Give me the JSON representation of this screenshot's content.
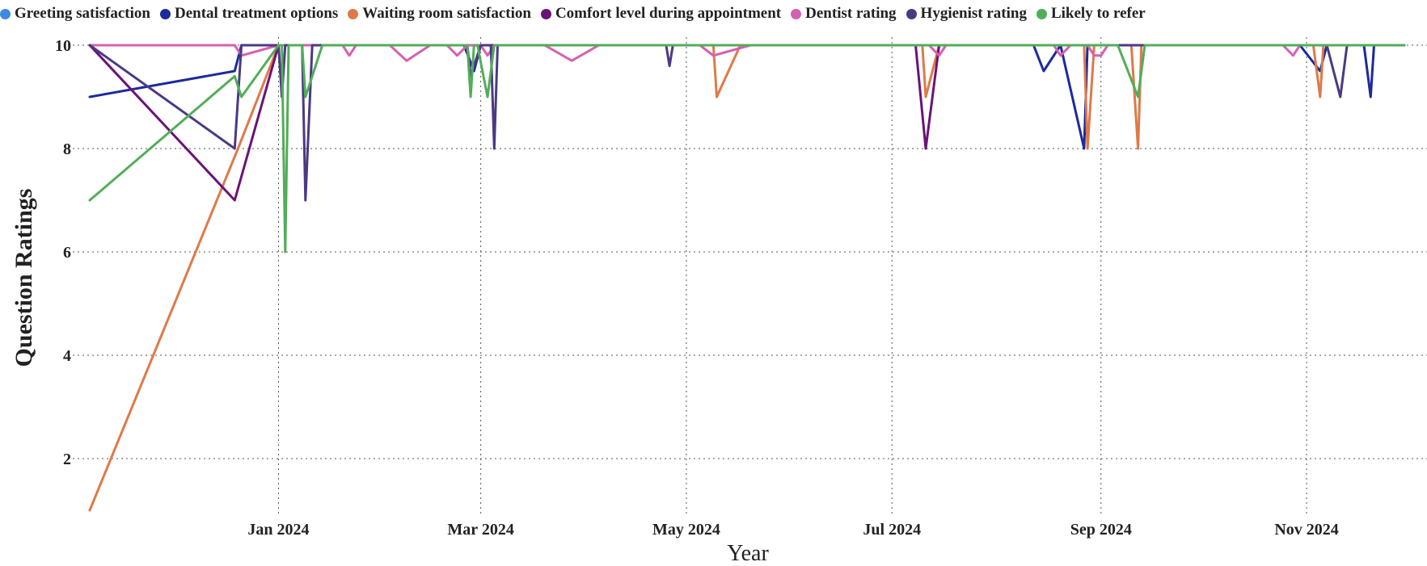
{
  "chart_data": {
    "type": "line",
    "xlabel": "Year",
    "ylabel": "Question Ratings",
    "ylim": [
      1,
      10
    ],
    "xlim": [
      "2023-11-06",
      "2024-11-30"
    ],
    "grid": true,
    "legend_position": "top",
    "y_ticks": [
      "2",
      "4",
      "6",
      "8",
      "10"
    ],
    "x_ticks": [
      {
        "date": "2024-01-01",
        "label": "Jan 2024"
      },
      {
        "date": "2024-03-01",
        "label": "Mar 2024"
      },
      {
        "date": "2024-05-01",
        "label": "May 2024"
      },
      {
        "date": "2024-07-01",
        "label": "Jul 2024"
      },
      {
        "date": "2024-09-01",
        "label": "Sep 2024"
      },
      {
        "date": "2024-11-01",
        "label": "Nov 2024"
      }
    ],
    "series": [
      {
        "name": "Greeting satisfaction",
        "color": "#3b8be0",
        "points": []
      },
      {
        "name": "Dental treatment options",
        "color": "#1c2a9c",
        "points": [
          [
            "2023-11-06",
            9
          ],
          [
            "2023-12-19",
            9.5
          ],
          [
            "2023-12-21",
            10
          ],
          [
            "2024-01-01",
            10
          ],
          [
            "2024-01-03",
            10
          ],
          [
            "2024-01-10",
            10
          ],
          [
            "2024-02-25",
            10
          ],
          [
            "2024-02-28",
            9.5
          ],
          [
            "2024-03-01",
            10
          ],
          [
            "2024-08-05",
            10
          ],
          [
            "2024-08-12",
            10
          ],
          [
            "2024-08-15",
            9.5
          ],
          [
            "2024-08-20",
            10
          ],
          [
            "2024-08-27",
            8
          ],
          [
            "2024-08-28",
            10
          ],
          [
            "2024-10-30",
            10
          ],
          [
            "2024-11-05",
            9.5
          ],
          [
            "2024-11-07",
            10
          ],
          [
            "2024-11-18",
            10
          ],
          [
            "2024-11-20",
            9
          ],
          [
            "2024-11-21",
            10
          ],
          [
            "2024-11-30",
            10
          ]
        ]
      },
      {
        "name": "Waiting room satisfaction",
        "color": "#de7a48",
        "points": [
          [
            "2023-11-06",
            1
          ],
          [
            "2023-12-20",
            8
          ],
          [
            "2024-01-01",
            10
          ],
          [
            "2024-04-30",
            10
          ],
          [
            "2024-05-09",
            10
          ],
          [
            "2024-05-10",
            9
          ],
          [
            "2024-05-17",
            10
          ],
          [
            "2024-07-10",
            10
          ],
          [
            "2024-07-11",
            9
          ],
          [
            "2024-07-15",
            10
          ],
          [
            "2024-08-27",
            10
          ],
          [
            "2024-08-28",
            8
          ],
          [
            "2024-08-30",
            10
          ],
          [
            "2024-09-10",
            10
          ],
          [
            "2024-09-12",
            8
          ],
          [
            "2024-09-13",
            10
          ],
          [
            "2024-11-03",
            10
          ],
          [
            "2024-11-05",
            9
          ],
          [
            "2024-11-06",
            10
          ],
          [
            "2024-11-30",
            10
          ]
        ]
      },
      {
        "name": "Comfort level during appointment",
        "color": "#6a1378",
        "points": [
          [
            "2023-11-06",
            10
          ],
          [
            "2023-12-19",
            7
          ],
          [
            "2024-01-01",
            10
          ],
          [
            "2024-07-08",
            10
          ],
          [
            "2024-07-11",
            8
          ],
          [
            "2024-07-15",
            10
          ],
          [
            "2024-11-30",
            10
          ]
        ]
      },
      {
        "name": "Dentist rating",
        "color": "#d660b2",
        "points": [
          [
            "2023-11-06",
            10
          ],
          [
            "2023-12-19",
            10
          ],
          [
            "2023-12-21",
            9.8
          ],
          [
            "2024-01-01",
            10
          ],
          [
            "2024-01-20",
            10
          ],
          [
            "2024-01-22",
            9.8
          ],
          [
            "2024-01-24",
            10
          ],
          [
            "2024-02-03",
            10
          ],
          [
            "2024-02-08",
            9.7
          ],
          [
            "2024-02-15",
            10
          ],
          [
            "2024-02-20",
            10
          ],
          [
            "2024-02-23",
            9.8
          ],
          [
            "2024-02-26",
            10
          ],
          [
            "2024-03-01",
            10
          ],
          [
            "2024-03-03",
            9.8
          ],
          [
            "2024-03-05",
            10
          ],
          [
            "2024-03-20",
            10
          ],
          [
            "2024-03-28",
            9.7
          ],
          [
            "2024-04-05",
            10
          ],
          [
            "2024-05-05",
            10
          ],
          [
            "2024-05-09",
            9.8
          ],
          [
            "2024-05-20",
            10
          ],
          [
            "2024-07-12",
            10
          ],
          [
            "2024-07-15",
            9.8
          ],
          [
            "2024-07-17",
            10
          ],
          [
            "2024-08-18",
            10
          ],
          [
            "2024-08-20",
            9.8
          ],
          [
            "2024-08-23",
            10
          ],
          [
            "2024-08-28",
            10
          ],
          [
            "2024-08-30",
            9.8
          ],
          [
            "2024-09-01",
            9.8
          ],
          [
            "2024-09-03",
            10
          ],
          [
            "2024-10-25",
            10
          ],
          [
            "2024-10-28",
            9.8
          ],
          [
            "2024-10-30",
            10
          ],
          [
            "2024-11-30",
            10
          ]
        ]
      },
      {
        "name": "Hygienist rating",
        "color": "#4b3a82",
        "points": [
          [
            "2023-11-06",
            10
          ],
          [
            "2023-12-19",
            8
          ],
          [
            "2023-12-21",
            10
          ],
          [
            "2024-01-01",
            10
          ],
          [
            "2024-01-02",
            9
          ],
          [
            "2024-01-03",
            10
          ],
          [
            "2024-01-08",
            10
          ],
          [
            "2024-01-09",
            7
          ],
          [
            "2024-01-11",
            10
          ],
          [
            "2024-02-26",
            10
          ],
          [
            "2024-02-27",
            9.4
          ],
          [
            "2024-03-01",
            10
          ],
          [
            "2024-03-04",
            10
          ],
          [
            "2024-03-05",
            8
          ],
          [
            "2024-03-06",
            10
          ],
          [
            "2024-04-25",
            10
          ],
          [
            "2024-04-26",
            9.6
          ],
          [
            "2024-04-27",
            10
          ],
          [
            "2024-11-07",
            10
          ],
          [
            "2024-11-11",
            9
          ],
          [
            "2024-11-13",
            10
          ],
          [
            "2024-11-30",
            10
          ]
        ]
      },
      {
        "name": "Likely to refer",
        "color": "#52ad59",
        "points": [
          [
            "2023-11-06",
            7
          ],
          [
            "2023-12-19",
            9.4
          ],
          [
            "2023-12-21",
            9
          ],
          [
            "2024-01-01",
            10
          ],
          [
            "2024-01-02",
            10
          ],
          [
            "2024-01-03",
            6
          ],
          [
            "2024-01-04",
            10
          ],
          [
            "2024-01-08",
            10
          ],
          [
            "2024-01-09",
            9
          ],
          [
            "2024-01-10",
            9.2
          ],
          [
            "2024-01-14",
            10
          ],
          [
            "2024-02-26",
            10
          ],
          [
            "2024-02-27",
            9
          ],
          [
            "2024-02-28",
            10
          ],
          [
            "2024-02-29",
            10
          ],
          [
            "2024-03-03",
            9
          ],
          [
            "2024-03-05",
            10
          ],
          [
            "2024-09-06",
            10
          ],
          [
            "2024-09-12",
            9
          ],
          [
            "2024-09-14",
            10
          ],
          [
            "2024-11-30",
            10
          ]
        ]
      }
    ]
  }
}
